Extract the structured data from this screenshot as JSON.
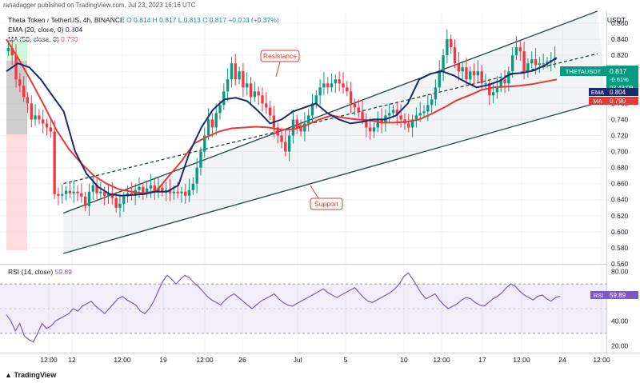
{
  "header": {
    "text": "ranadagger published on TradingView.com, Jul 23, 2023 16:16 UTC"
  },
  "legend": {
    "symbol": "Theta Token / TetherUS, 4h, BINANCE",
    "ohlc": "O 0.814  H 0.817  L 0.813  C 0.817  +0.003 (+0.37%)",
    "ema": "EMA (20, close, 0)",
    "ema_value": "0.804",
    "ma": "MA (50, close, 0)",
    "ma_value": "0.790",
    "currency": "USDT"
  },
  "rsi_legend": {
    "label": "RSI (14, close)",
    "value": "59.89"
  },
  "footer": {
    "brand": "TradingView"
  },
  "annotations": {
    "resistance": "Resistance",
    "support": "Support"
  },
  "price_labels": {
    "symbol_tag": "THETAUSDT",
    "price": "0.817",
    "change": "-0.61%",
    "countdown": "03:43:09",
    "ema_tag": "EMA",
    "ema_value": "0.804",
    "ma_tag": "MA",
    "ma_value": "0.790",
    "rsi_tag": "RSI",
    "rsi_value": "59.89"
  },
  "colors": {
    "up": "#089981",
    "down": "#f23645",
    "ema": "#1c2a6b",
    "ma": "#e53935",
    "rsi": "#7e57c2",
    "channel": "#2f4f4f"
  },
  "chart_data": [
    {
      "type": "candlestick",
      "title": "Theta Token / TetherUS, 4h, BINANCE",
      "ylim": [
        0.56,
        0.875
      ],
      "y_ticks": [
        "0.860",
        "0.840",
        "0.820",
        "0.800",
        "0.780",
        "0.760",
        "0.740",
        "0.720",
        "0.700",
        "0.680",
        "0.660",
        "0.640",
        "0.620",
        "0.600",
        "0.580",
        "0.560"
      ],
      "x_tick_labels": [
        "12:00",
        "12",
        "12:00",
        "19",
        "12:00",
        "26",
        "Jul",
        "5",
        "10",
        "12:00",
        "17",
        "12:00",
        "24",
        "12:00"
      ],
      "x_ticks_at": [
        61,
        90,
        153,
        204,
        256,
        303,
        372,
        432,
        505,
        552,
        603,
        652,
        703,
        752
      ],
      "close": [
        0.829,
        0.82,
        0.79,
        0.782,
        0.768,
        0.76,
        0.74,
        0.745,
        0.74,
        0.735,
        0.73,
        0.725,
        0.647,
        0.645,
        0.647,
        0.651,
        0.648,
        0.65,
        0.648,
        0.644,
        0.632,
        0.65,
        0.658,
        0.648,
        0.65,
        0.645,
        0.648,
        0.642,
        0.63,
        0.635,
        0.644,
        0.648,
        0.645,
        0.652,
        0.656,
        0.648,
        0.654,
        0.658,
        0.65,
        0.655,
        0.65,
        0.652,
        0.648,
        0.65,
        0.648,
        0.65,
        0.645,
        0.652,
        0.66,
        0.68,
        0.7,
        0.72,
        0.74,
        0.73,
        0.748,
        0.758,
        0.775,
        0.79,
        0.81,
        0.79,
        0.8,
        0.78,
        0.785,
        0.768,
        0.775,
        0.77,
        0.76,
        0.755,
        0.745,
        0.73,
        0.72,
        0.712,
        0.7,
        0.72,
        0.74,
        0.73,
        0.725,
        0.735,
        0.745,
        0.76,
        0.77,
        0.78,
        0.785,
        0.78,
        0.785,
        0.79,
        0.785,
        0.78,
        0.775,
        0.76,
        0.755,
        0.75,
        0.74,
        0.73,
        0.725,
        0.73,
        0.74,
        0.735,
        0.745,
        0.748,
        0.752,
        0.745,
        0.74,
        0.735,
        0.73,
        0.74,
        0.745,
        0.748,
        0.75,
        0.758,
        0.765,
        0.78,
        0.8,
        0.82,
        0.84,
        0.83,
        0.81,
        0.8,
        0.805,
        0.79,
        0.8,
        0.795,
        0.8,
        0.785,
        0.785,
        0.77,
        0.774,
        0.78,
        0.79,
        0.785,
        0.8,
        0.82,
        0.83,
        0.825,
        0.8,
        0.81,
        0.815,
        0.808,
        0.81,
        0.81,
        0.812,
        0.814,
        0.817
      ],
      "ema": [
        0.8,
        0.81,
        0.805,
        0.79,
        0.77,
        0.75,
        0.7,
        0.672,
        0.656,
        0.647,
        0.645,
        0.646,
        0.647,
        0.65,
        0.65,
        0.658,
        0.7,
        0.73,
        0.752,
        0.765,
        0.767,
        0.763,
        0.75,
        0.735,
        0.74,
        0.75,
        0.755,
        0.76,
        0.748,
        0.74,
        0.735,
        0.737,
        0.74,
        0.74,
        0.745,
        0.76,
        0.79,
        0.797,
        0.8,
        0.795,
        0.787,
        0.78,
        0.783,
        0.788,
        0.797,
        0.798,
        0.801,
        0.808,
        0.817
      ],
      "ma": [
        0.84,
        0.815,
        0.787,
        0.758,
        0.727,
        0.703,
        0.685,
        0.67,
        0.66,
        0.653,
        0.65,
        0.648,
        0.651,
        0.67,
        0.688,
        0.71,
        0.718,
        0.725,
        0.729,
        0.73,
        0.731,
        0.73,
        0.727,
        0.728,
        0.733,
        0.74,
        0.745,
        0.742,
        0.74,
        0.739,
        0.736,
        0.736,
        0.737,
        0.74,
        0.747,
        0.755,
        0.764,
        0.77,
        0.777,
        0.78,
        0.781,
        0.782,
        0.784,
        0.787,
        0.79
      ],
      "resistance_line": [
        [
          0.695,
          0.793
        ],
        [
          0.985,
          0.875
        ]
      ],
      "support_line": [
        [
          0.095,
          0.573
        ],
        [
          1.0,
          0.764
        ]
      ],
      "middle_line": [
        [
          0.095,
          0.66
        ],
        [
          0.985,
          0.822
        ]
      ]
    },
    {
      "type": "line",
      "title": "RSI (14, close)",
      "ylim": [
        15,
        85
      ],
      "y_ticks": [
        "80.00",
        "40.00",
        "20.00"
      ],
      "band": [
        30,
        70
      ],
      "series": [
        {
          "name": "RSI",
          "values": [
            45,
            40,
            32,
            38,
            28,
            25,
            23,
            30,
            38,
            34,
            36,
            40,
            42,
            44,
            46,
            50,
            48,
            52,
            54,
            56,
            52,
            49,
            46,
            50,
            54,
            58,
            60,
            57,
            55,
            53,
            48,
            46,
            50,
            56,
            64,
            72,
            77,
            74,
            70,
            74,
            77,
            75,
            71,
            68,
            64,
            60,
            57,
            55,
            53,
            57,
            60,
            62,
            59,
            56,
            53,
            50,
            53,
            56,
            58,
            60,
            62,
            58,
            55,
            53,
            52,
            54,
            56,
            58,
            60,
            62,
            64,
            66,
            63,
            61,
            59,
            61,
            63,
            65,
            67,
            63,
            59,
            56,
            55,
            57,
            59,
            61,
            63,
            66,
            70,
            76,
            79,
            74,
            68,
            62,
            58,
            60,
            62,
            57,
            53,
            50,
            52,
            54,
            57,
            59,
            58,
            55,
            53,
            52,
            55,
            58,
            60,
            63,
            67,
            70,
            68,
            64,
            61,
            59,
            57,
            60,
            61,
            58,
            56,
            59,
            60
          ]
        }
      ]
    }
  ]
}
